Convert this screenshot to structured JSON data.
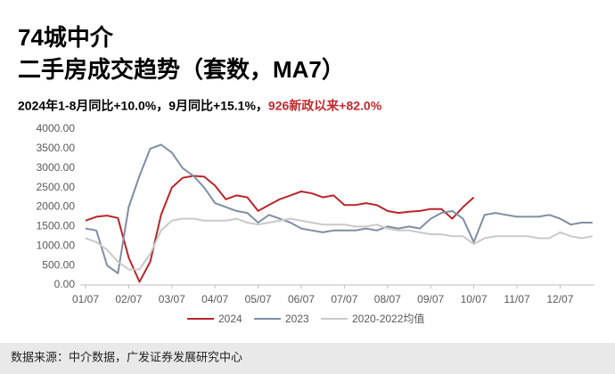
{
  "chart_data": {
    "type": "line",
    "title": "74城中介",
    "subtitle": "二手房成交趋势（套数，MA7）",
    "annotation": "2024年1-8月同比+10.0%，9月同比+15.1%，",
    "annotation_highlight": "926新政以来+82.0%",
    "source": "数据来源：中介数据，广发证券发展研究中心",
    "categories": [
      "01/07",
      null,
      null,
      null,
      "02/07",
      null,
      null,
      null,
      "03/07",
      null,
      null,
      null,
      "04/07",
      null,
      null,
      null,
      "05/07",
      null,
      null,
      null,
      "06/07",
      null,
      null,
      null,
      "07/07",
      null,
      null,
      null,
      "08/07",
      null,
      null,
      null,
      "09/07",
      null,
      null,
      null,
      "10/07",
      null,
      null,
      null,
      "11/07",
      null,
      null,
      null,
      "12/07",
      null,
      null,
      null
    ],
    "series": [
      {
        "name": "2024",
        "color": "#b8252b",
        "values": [
          1650,
          1750,
          1780,
          1720,
          700,
          80,
          600,
          1800,
          2500,
          2750,
          2800,
          2780,
          2550,
          2200,
          2300,
          2250,
          1900,
          2050,
          2200,
          2300,
          2400,
          2350,
          2250,
          2300,
          2050,
          2050,
          2100,
          2050,
          1900,
          1850,
          1880,
          1900,
          1950,
          1950,
          1700,
          2000,
          2250,
          null,
          null,
          null,
          null,
          null,
          null,
          null,
          null,
          null,
          null,
          null
        ]
      },
      {
        "name": "2023",
        "color": "#7f8ea3",
        "values": [
          1450,
          1400,
          500,
          300,
          2000,
          2800,
          3500,
          3600,
          3400,
          3000,
          2800,
          2500,
          2100,
          2000,
          1900,
          1850,
          1600,
          1800,
          1700,
          1600,
          1450,
          1400,
          1350,
          1400,
          1400,
          1400,
          1450,
          1400,
          1500,
          1450,
          1500,
          1450,
          1700,
          1850,
          1900,
          1700,
          1100,
          1800,
          1850,
          1800,
          1750,
          1750,
          1750,
          1800,
          1700,
          1550,
          1600,
          1600
        ]
      },
      {
        "name": "2020-2022均值",
        "color": "#c9c9c9",
        "values": [
          1200,
          1100,
          900,
          600,
          400,
          400,
          800,
          1400,
          1650,
          1700,
          1700,
          1650,
          1650,
          1650,
          1700,
          1600,
          1550,
          1600,
          1650,
          1700,
          1650,
          1600,
          1550,
          1550,
          1550,
          1500,
          1500,
          1550,
          1450,
          1400,
          1400,
          1350,
          1300,
          1300,
          1250,
          1250,
          1050,
          1200,
          1250,
          1250,
          1250,
          1250,
          1200,
          1200,
          1350,
          1250,
          1200,
          1250
        ]
      }
    ],
    "ylim": [
      0,
      4000
    ],
    "yticks": [
      {
        "value": 0,
        "label": "0.00"
      },
      {
        "value": 500,
        "label": "500.00"
      },
      {
        "value": 1000,
        "label": "1000.00"
      },
      {
        "value": 1500,
        "label": "1500.00"
      },
      {
        "value": 2000,
        "label": "2000.00"
      },
      {
        "value": 2500,
        "label": "2500.00"
      },
      {
        "value": 3000,
        "label": "3000.00"
      },
      {
        "value": 3500,
        "label": "3500.00"
      },
      {
        "value": 4000,
        "label": "4000.00"
      }
    ],
    "grid": false
  }
}
